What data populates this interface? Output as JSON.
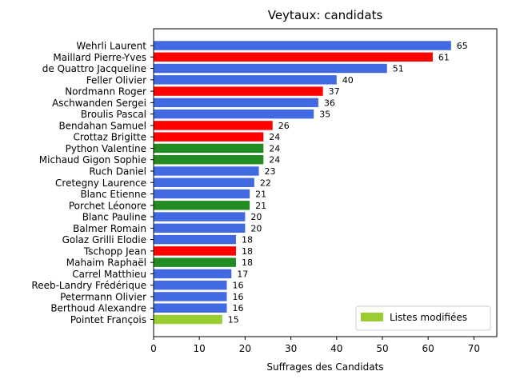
{
  "chart_data": {
    "type": "bar",
    "orientation": "horizontal",
    "title": "Veytaux: candidats",
    "xlabel": "Suffrages des Candidats",
    "ylabel": "",
    "xlim": [
      0,
      75
    ],
    "xticks": [
      0,
      10,
      20,
      30,
      40,
      50,
      60,
      70
    ],
    "grid": false,
    "legend": {
      "placement": "lower-right",
      "entries": [
        {
          "label": "Listes modifiées",
          "color": "#9acd32"
        }
      ]
    },
    "colors": {
      "blue": "#4169e1",
      "red": "#ff0000",
      "green": "#228b22",
      "lightgreen": "#9acd32"
    },
    "categories": [
      "Wehrli Laurent",
      "Maillard Pierre-Yves",
      "de Quattro Jacqueline",
      "Feller Olivier",
      "Nordmann Roger",
      "Aschwanden Sergei",
      "Broulis Pascal",
      "Bendahan Samuel",
      "Crottaz Brigitte",
      "Python Valentine",
      "Michaud Gigon Sophie",
      "Ruch Daniel",
      "Cretegny Laurence",
      "Blanc Etienne",
      "Porchet Léonore",
      "Blanc Pauline",
      "Balmer Romain",
      "Golaz Grilli Elodie",
      "Tschopp Jean",
      "Mahaim Raphaël",
      "Carrel Matthieu",
      "Reeb-Landry Frédérique",
      "Petermann Olivier",
      "Berthoud Alexandre",
      "Pointet François"
    ],
    "values": [
      65,
      61,
      51,
      40,
      37,
      36,
      35,
      26,
      24,
      24,
      24,
      23,
      22,
      21,
      21,
      20,
      20,
      18,
      18,
      18,
      17,
      16,
      16,
      16,
      15
    ],
    "bar_colors": [
      "#4169e1",
      "#ff0000",
      "#4169e1",
      "#4169e1",
      "#ff0000",
      "#4169e1",
      "#4169e1",
      "#ff0000",
      "#ff0000",
      "#228b22",
      "#228b22",
      "#4169e1",
      "#4169e1",
      "#4169e1",
      "#228b22",
      "#4169e1",
      "#4169e1",
      "#4169e1",
      "#ff0000",
      "#228b22",
      "#4169e1",
      "#4169e1",
      "#4169e1",
      "#4169e1",
      "#9acd32"
    ]
  }
}
